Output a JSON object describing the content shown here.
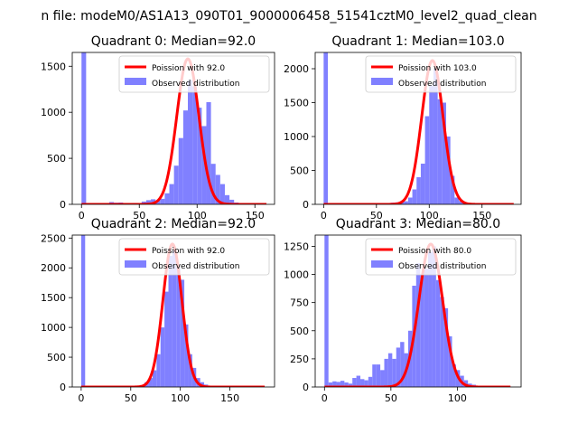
{
  "figure": {
    "suptitle": "n file: modeM0/AS1A13_090T01_9000006458_51541cztM0_level2_quad_clean"
  },
  "colors": {
    "hist": "#8080ff",
    "fit": "#ff0000",
    "axis": "#000000"
  },
  "chart_data": [
    {
      "type": "bar",
      "title": "Quadrant 0: Median=92.0",
      "xlim": [
        -8,
        167
      ],
      "ylim": [
        0,
        1650
      ],
      "xticks": [
        0,
        50,
        100,
        150
      ],
      "yticks": [
        0,
        500,
        1000,
        1500
      ],
      "bin_width": 4,
      "bins": [
        [
          0,
          1650
        ],
        [
          20,
          12
        ],
        [
          24,
          25
        ],
        [
          28,
          18
        ],
        [
          32,
          20
        ],
        [
          36,
          12
        ],
        [
          40,
          10
        ],
        [
          44,
          15
        ],
        [
          48,
          8
        ],
        [
          52,
          30
        ],
        [
          56,
          45
        ],
        [
          60,
          55
        ],
        [
          64,
          40
        ],
        [
          68,
          60
        ],
        [
          72,
          120
        ],
        [
          76,
          220
        ],
        [
          80,
          420
        ],
        [
          84,
          720
        ],
        [
          88,
          1020
        ],
        [
          92,
          1350
        ],
        [
          96,
          1280
        ],
        [
          100,
          1050
        ],
        [
          104,
          850
        ],
        [
          108,
          1110
        ],
        [
          112,
          440
        ],
        [
          116,
          320
        ],
        [
          120,
          220
        ],
        [
          124,
          100
        ],
        [
          128,
          50
        ],
        [
          132,
          20
        ],
        [
          136,
          10
        ],
        [
          140,
          5
        ]
      ],
      "fit": {
        "label": "Poission with 92.0",
        "mean": 92.0,
        "peak": 1580,
        "x_range": [
          0,
          160
        ]
      },
      "legend": [
        "Poission with 92.0",
        "Observed distribution"
      ]
    },
    {
      "type": "bar",
      "title": "Quadrant 1: Median=103.0",
      "xlim": [
        -8,
        187
      ],
      "ylim": [
        0,
        2240
      ],
      "xticks": [
        0,
        50,
        100,
        150
      ],
      "yticks": [
        0,
        500,
        1000,
        1500,
        2000
      ],
      "bin_width": 4,
      "bins": [
        [
          0,
          2240
        ],
        [
          60,
          15
        ],
        [
          64,
          25
        ],
        [
          68,
          30
        ],
        [
          72,
          35
        ],
        [
          76,
          45
        ],
        [
          80,
          100
        ],
        [
          84,
          220
        ],
        [
          88,
          400
        ],
        [
          92,
          600
        ],
        [
          96,
          1300
        ],
        [
          100,
          1750
        ],
        [
          104,
          2000
        ],
        [
          108,
          1550
        ],
        [
          112,
          1500
        ],
        [
          116,
          1000
        ],
        [
          120,
          420
        ],
        [
          124,
          100
        ],
        [
          128,
          50
        ],
        [
          132,
          30
        ],
        [
          136,
          15
        ]
      ],
      "fit": {
        "label": "Poission with 103.0",
        "mean": 103.0,
        "peak": 2120,
        "x_range": [
          0,
          180
        ]
      },
      "legend": [
        "Poission with 103.0",
        "Observed distribution"
      ]
    },
    {
      "type": "bar",
      "title": "Quadrant 2: Median=92.0",
      "xlim": [
        -9,
        195
      ],
      "ylim": [
        0,
        2550
      ],
      "xticks": [
        0,
        50,
        100,
        150
      ],
      "yticks": [
        0,
        500,
        1000,
        1500,
        2000,
        2500
      ],
      "bin_width": 4,
      "bins": [
        [
          0,
          2550
        ],
        [
          60,
          30
        ],
        [
          64,
          80
        ],
        [
          68,
          150
        ],
        [
          72,
          280
        ],
        [
          76,
          550
        ],
        [
          80,
          1000
        ],
        [
          84,
          1600
        ],
        [
          88,
          2200
        ],
        [
          92,
          2300
        ],
        [
          96,
          2000
        ],
        [
          100,
          1800
        ],
        [
          104,
          1050
        ],
        [
          108,
          550
        ],
        [
          112,
          320
        ],
        [
          116,
          150
        ],
        [
          120,
          80
        ],
        [
          124,
          40
        ],
        [
          128,
          20
        ]
      ],
      "fit": {
        "label": "Poission with 92.0",
        "mean": 92.0,
        "peak": 2400,
        "x_range": [
          0,
          185
        ]
      },
      "legend": [
        "Poission with 92.0",
        "Observed distribution"
      ]
    },
    {
      "type": "bar",
      "title": "Quadrant 3: Median=80.0",
      "xlim": [
        -7,
        148
      ],
      "ylim": [
        0,
        1350
      ],
      "xticks": [
        0,
        50,
        100
      ],
      "yticks": [
        0,
        250,
        500,
        750,
        1000,
        1250
      ],
      "bin_width": 3,
      "bins": [
        [
          0,
          1350
        ],
        [
          3,
          40
        ],
        [
          6,
          50
        ],
        [
          9,
          45
        ],
        [
          12,
          55
        ],
        [
          15,
          40
        ],
        [
          18,
          30
        ],
        [
          21,
          80
        ],
        [
          24,
          100
        ],
        [
          27,
          70
        ],
        [
          30,
          60
        ],
        [
          33,
          90
        ],
        [
          36,
          200
        ],
        [
          39,
          200
        ],
        [
          42,
          150
        ],
        [
          45,
          250
        ],
        [
          48,
          300
        ],
        [
          51,
          250
        ],
        [
          54,
          350
        ],
        [
          57,
          400
        ],
        [
          60,
          300
        ],
        [
          63,
          500
        ],
        [
          66,
          900
        ],
        [
          69,
          1100
        ],
        [
          72,
          1000
        ],
        [
          75,
          1050
        ],
        [
          78,
          1200
        ],
        [
          81,
          1250
        ],
        [
          84,
          950
        ],
        [
          87,
          800
        ],
        [
          90,
          700
        ],
        [
          93,
          450
        ],
        [
          96,
          200
        ],
        [
          99,
          150
        ],
        [
          102,
          100
        ],
        [
          105,
          60
        ],
        [
          108,
          30
        ],
        [
          111,
          20
        ]
      ],
      "fit": {
        "label": "Poission with 80.0",
        "mean": 80.0,
        "peak": 1270,
        "x_range": [
          0,
          140
        ]
      },
      "legend": [
        "Poission with 80.0",
        "Observed distribution"
      ]
    }
  ]
}
